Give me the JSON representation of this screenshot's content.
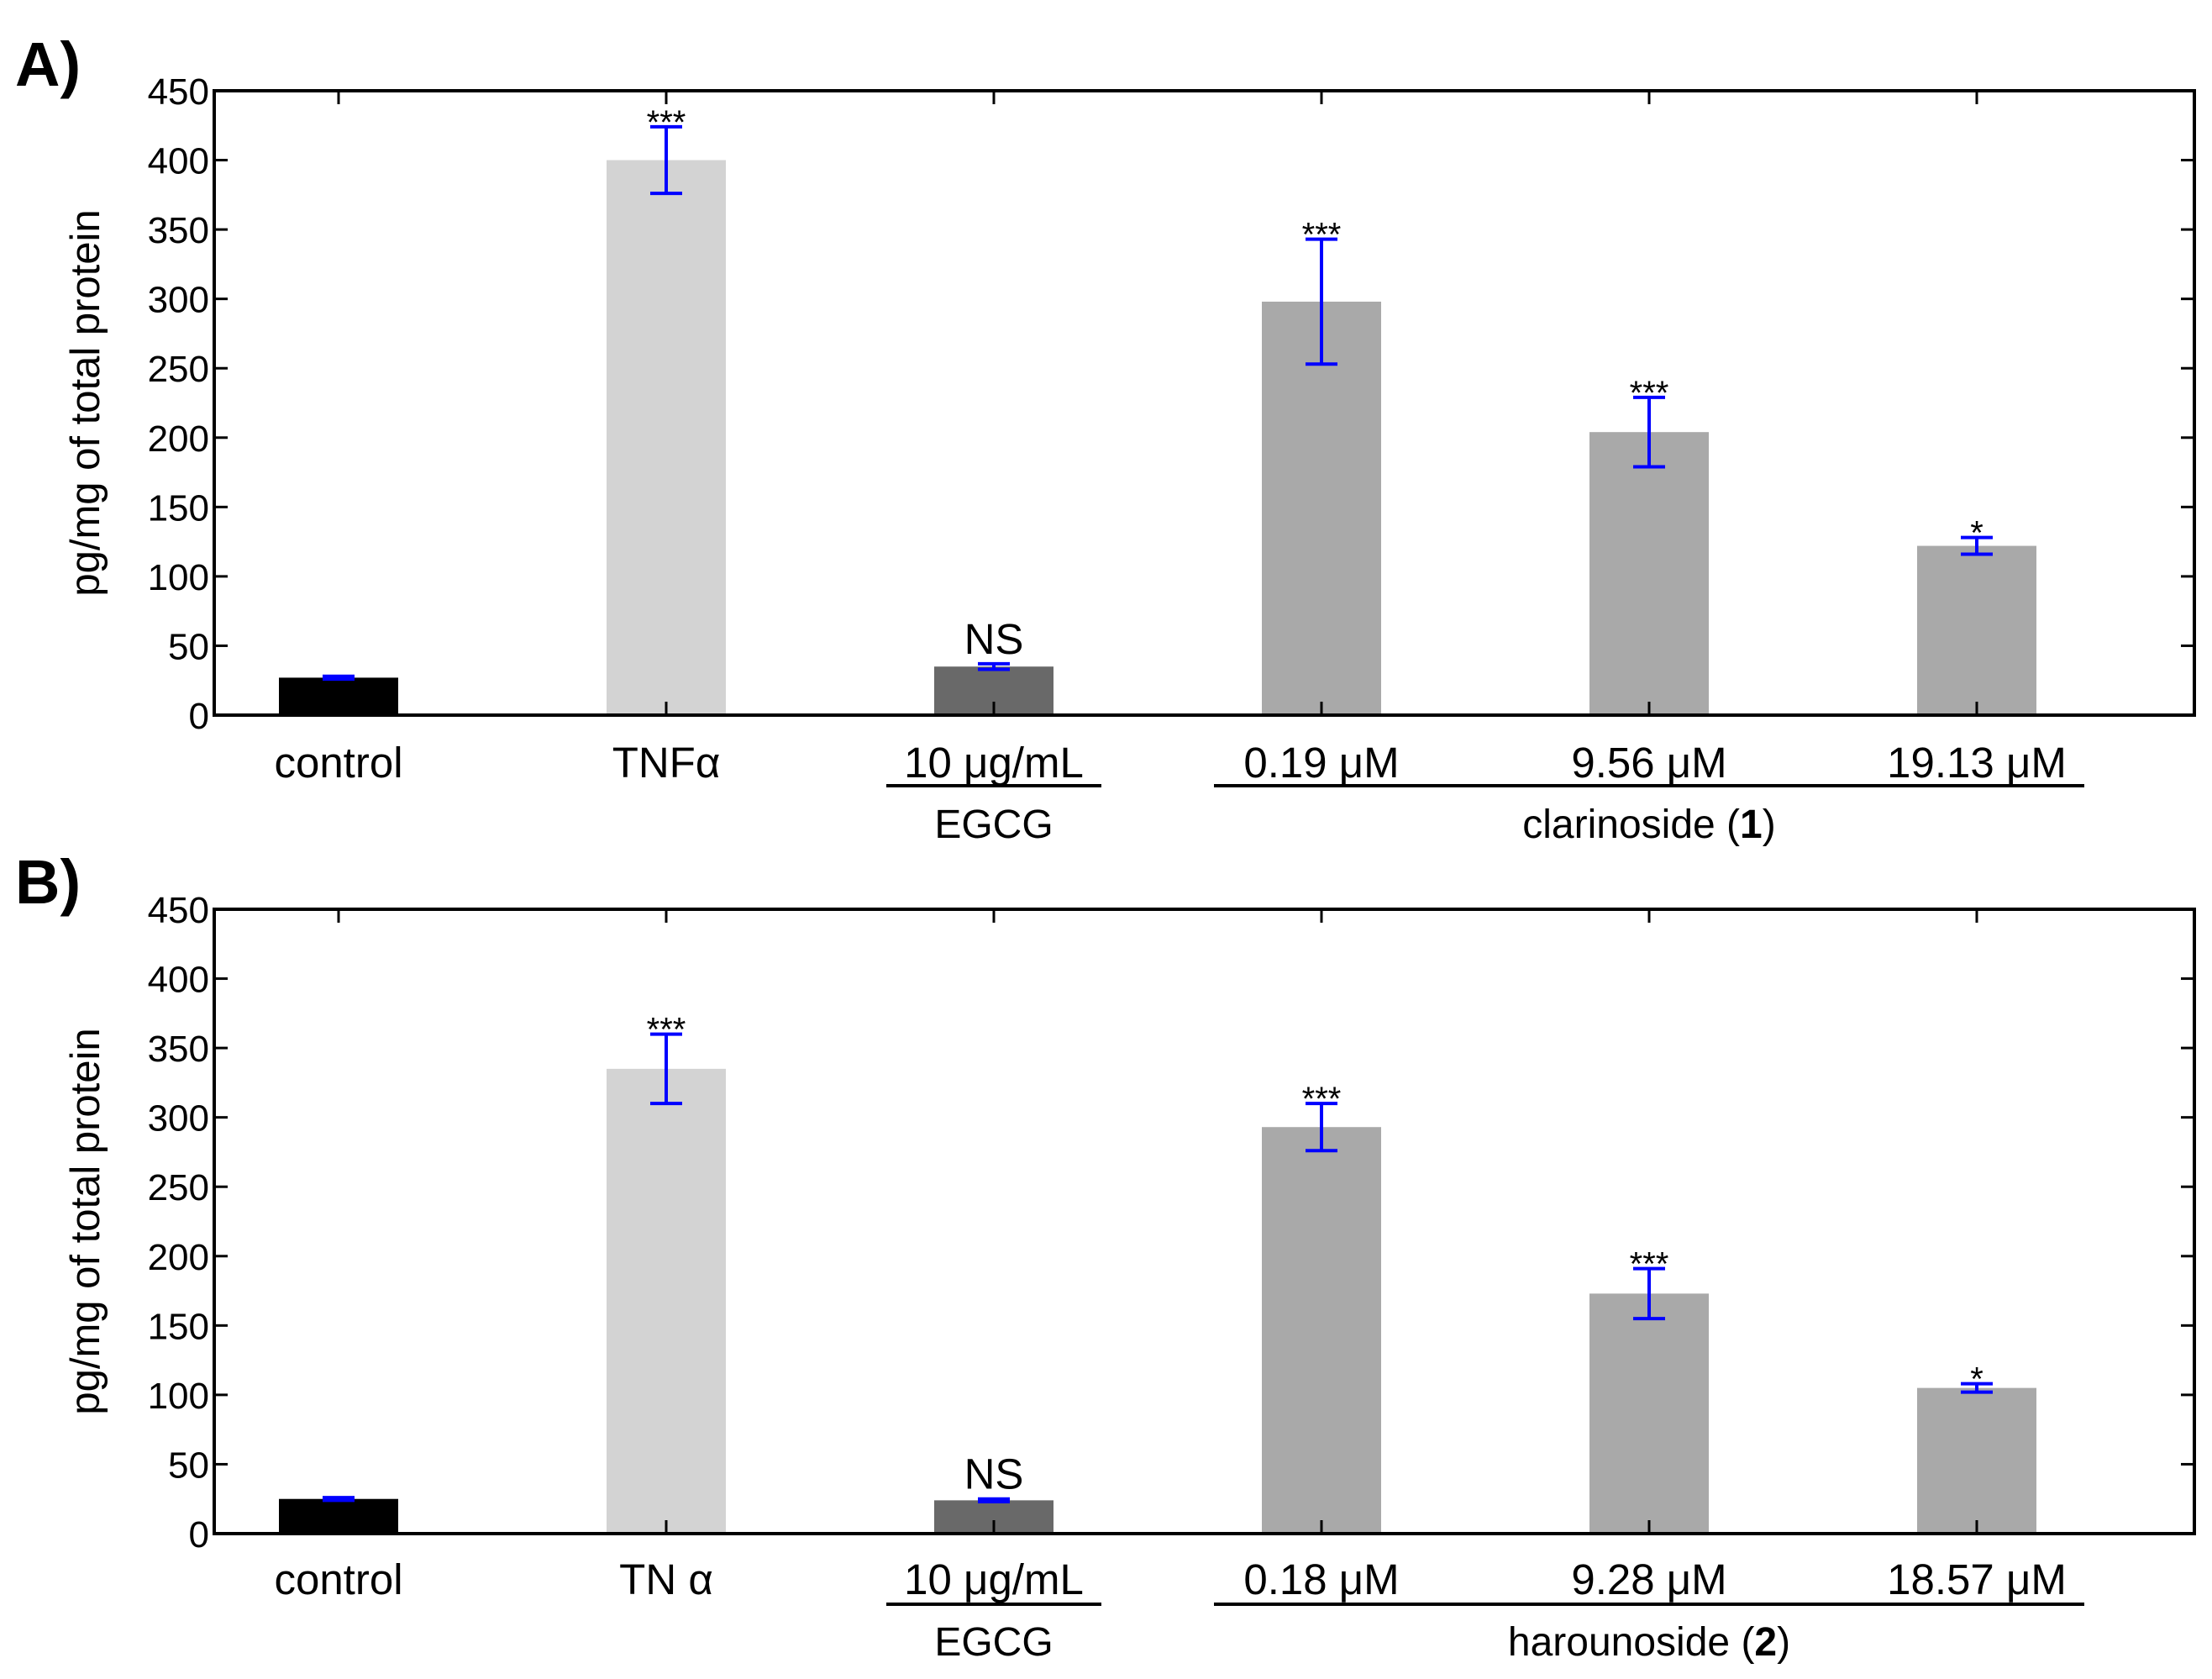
{
  "figure": {
    "panel_labels": [
      "A)",
      "B)"
    ]
  },
  "chart_data": [
    {
      "type": "bar",
      "panel": "A)",
      "ylabel": "pg/mg of total protein",
      "ylim": [
        0,
        450
      ],
      "yticks": [
        0,
        50,
        100,
        150,
        200,
        250,
        300,
        350,
        400,
        450
      ],
      "categories": [
        "control",
        "TNFα",
        "10 μg/mL",
        "0.19 μM",
        "9.56 μM",
        "19.13 μM"
      ],
      "values": [
        27,
        400,
        35,
        298,
        204,
        122
      ],
      "errors": [
        1,
        24,
        2,
        45,
        25,
        6
      ],
      "significance": [
        "",
        "***",
        "NS",
        "***",
        "***",
        "*"
      ],
      "bar_colors": [
        "#000000",
        "#d3d3d3",
        "#696969",
        "#a9a9a9",
        "#a9a9a9",
        "#a9a9a9"
      ],
      "error_color": "#0000ff",
      "groups": [
        {
          "label": "EGCG",
          "bold_part": "",
          "suffix": "",
          "from": 2,
          "to": 2
        },
        {
          "label": "clarinoside (",
          "bold_part": "1",
          "suffix": ")",
          "from": 3,
          "to": 5
        }
      ]
    },
    {
      "type": "bar",
      "panel": "B)",
      "ylabel": "pg/mg of total protein",
      "ylim": [
        0,
        450
      ],
      "yticks": [
        0,
        50,
        100,
        150,
        200,
        250,
        300,
        350,
        400,
        450
      ],
      "categories": [
        "control",
        "TN  α",
        "10 μg/mL",
        "0.18 μM",
        "9.28 μM",
        "18.57 μM"
      ],
      "values": [
        25,
        335,
        24,
        293,
        173,
        105
      ],
      "errors": [
        1,
        25,
        1,
        17,
        18,
        3
      ],
      "significance": [
        "",
        "***",
        "NS",
        "***",
        "***",
        "*"
      ],
      "bar_colors": [
        "#000000",
        "#d3d3d3",
        "#696969",
        "#a9a9a9",
        "#a9a9a9",
        "#a9a9a9"
      ],
      "error_color": "#0000ff",
      "groups": [
        {
          "label": "EGCG",
          "bold_part": "",
          "suffix": "",
          "from": 2,
          "to": 2
        },
        {
          "label": "harounoside (",
          "bold_part": "2",
          "suffix": ")",
          "from": 3,
          "to": 5
        }
      ]
    }
  ]
}
